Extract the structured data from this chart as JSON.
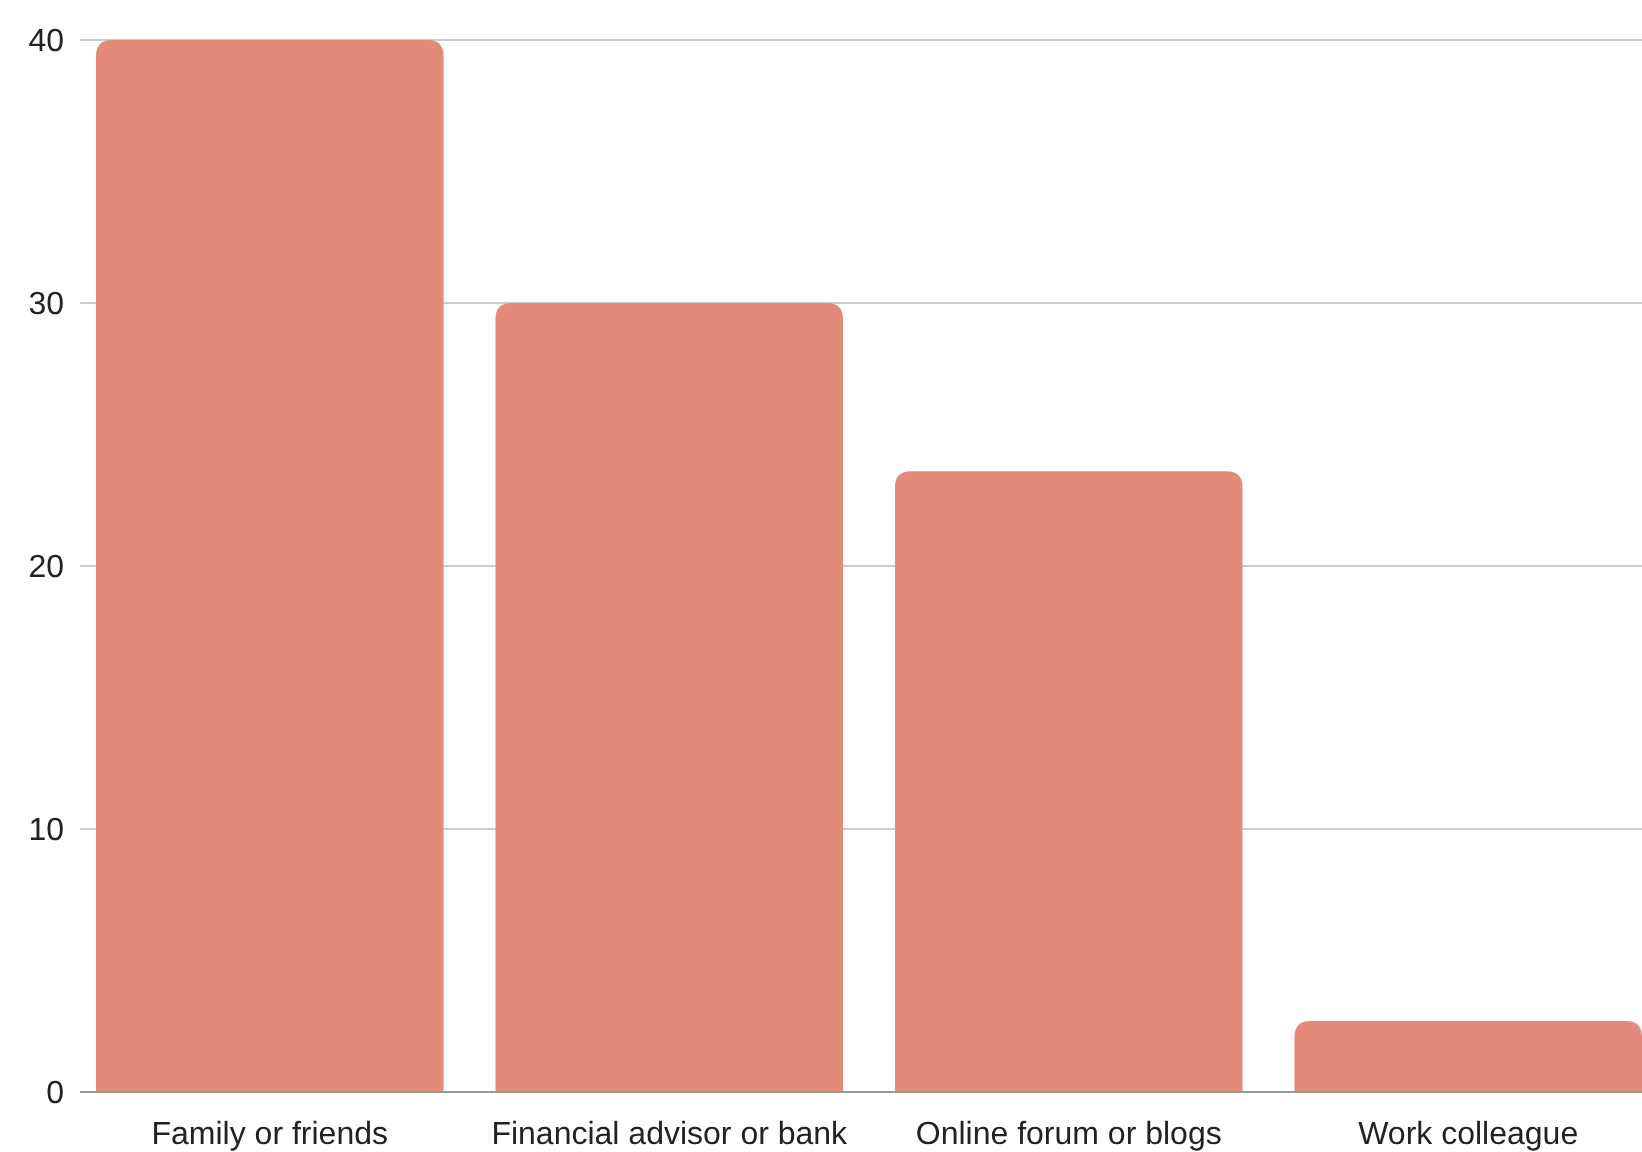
{
  "chart_data": {
    "type": "bar",
    "categories": [
      "Family or friends",
      "Financial advisor or bank",
      "Online forum or blogs",
      "Work colleague"
    ],
    "values": [
      40,
      30,
      23.6,
      2.7
    ],
    "color": "#e48a7b",
    "ylim": [
      0,
      40
    ],
    "yticks": [
      0,
      10,
      20,
      30,
      40
    ],
    "grid": "y"
  }
}
